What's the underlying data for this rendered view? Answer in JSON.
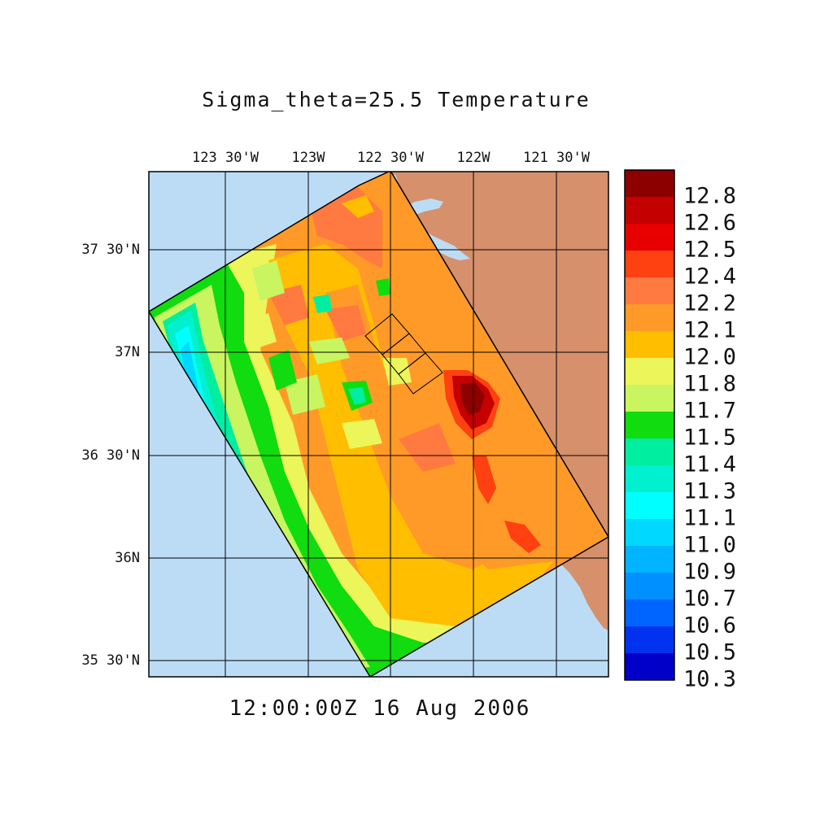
{
  "title": "Sigma_theta=25.5 Temperature",
  "timestamp": "12:00:00Z  16 Aug 2006",
  "lon_labels": [
    "123 30'W",
    "123W",
    "122 30'W",
    "122W",
    "121 30'W"
  ],
  "lat_labels": [
    "37 30'N",
    "37N",
    "36 30'N",
    "36N",
    "35 30'N"
  ],
  "colorbar": {
    "labels": [
      "12.8",
      "12.6",
      "12.5",
      "12.4",
      "12.2",
      "12.1",
      "12.0",
      "11.8",
      "11.7",
      "11.5",
      "11.4",
      "11.3",
      "11.1",
      "11.0",
      "10.9",
      "10.7",
      "10.6",
      "10.5",
      "10.3"
    ],
    "colors_top_to_bottom": [
      "#8c0000",
      "#c40000",
      "#e60000",
      "#ff4010",
      "#ff7a40",
      "#ff9a28",
      "#ffbe00",
      "#ecf55a",
      "#c8f560",
      "#10dc10",
      "#00eea0",
      "#00f0d0",
      "#00ffff",
      "#00d8ff",
      "#00b4ff",
      "#0090ff",
      "#0064ff",
      "#0032f0",
      "#0000c8"
    ]
  },
  "colors": {
    "ocean": "#bcdcf6",
    "land": "#d6906c"
  }
}
